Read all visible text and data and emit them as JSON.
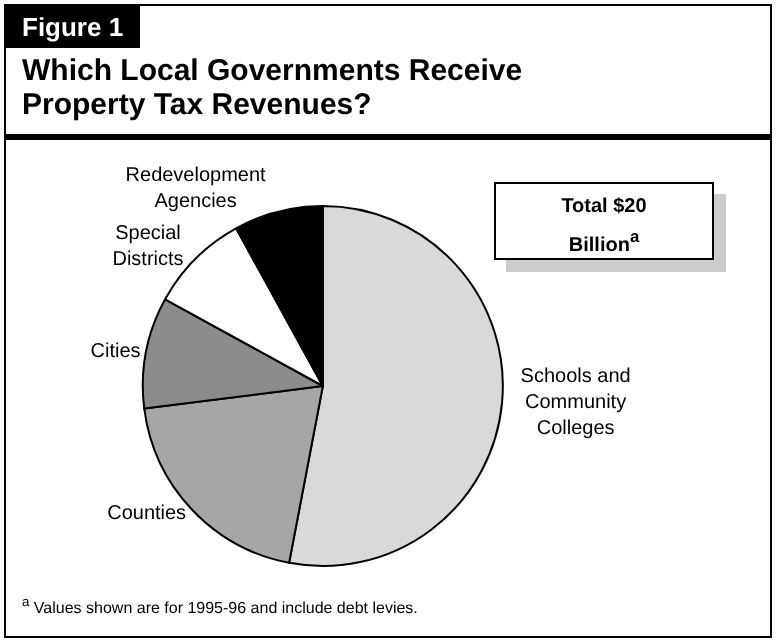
{
  "chart_data": {
    "type": "pie",
    "subtitle": "Figure 1",
    "title": "Which Local Governments Receive Property Tax Revenues?",
    "categories": [
      "Schools and Community Colleges",
      "Counties",
      "Cities",
      "Special Districts",
      "Redevelopment Agencies"
    ],
    "values": [
      53,
      20,
      10,
      9,
      8
    ],
    "colors": [
      "#d9d9d9",
      "#a6a6a6",
      "#8c8c8c",
      "#ffffff",
      "#000000"
    ],
    "annotations": [
      "Total $20 Billion$^{a}$",
      "$^{a}$ Values shown are for 1995-96 and include debt levies."
    ]
  }
}
